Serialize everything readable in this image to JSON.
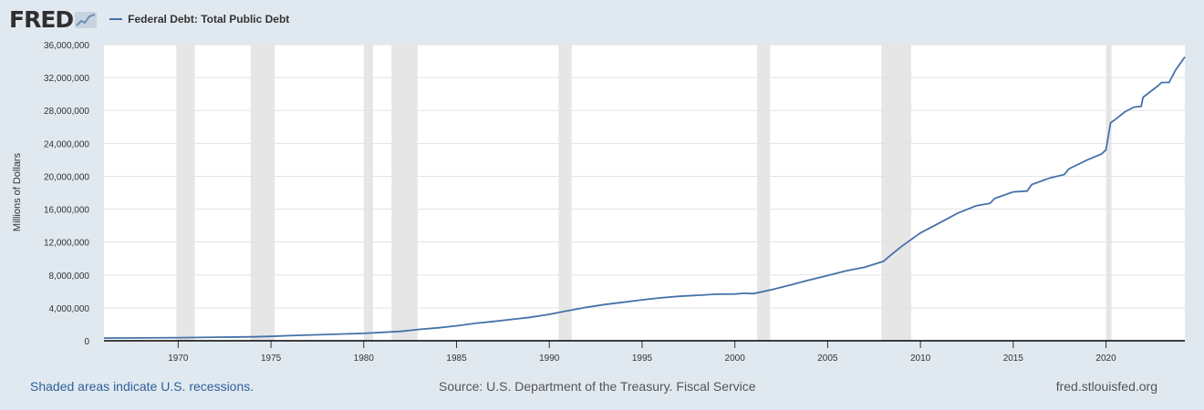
{
  "header": {
    "logo_text": "FRED",
    "series_title": "Federal Debt: Total Public Debt",
    "series_color": "#4572a7"
  },
  "footer": {
    "recession_note": "Shaded areas indicate U.S. recessions.",
    "source": "Source: U.S. Department of the Treasury. Fiscal Service",
    "site": "fred.stlouisfed.org"
  },
  "chart_data": {
    "type": "line",
    "title": "",
    "series_name": "Federal Debt: Total Public Debt",
    "xlabel": "",
    "ylabel": "Millions of Dollars",
    "xlim": [
      1966.0,
      2024.25
    ],
    "ylim": [
      0,
      36000000
    ],
    "x_ticks": [
      1970,
      1975,
      1980,
      1985,
      1990,
      1995,
      2000,
      2005,
      2010,
      2015,
      2020
    ],
    "y_ticks": [
      0,
      4000000,
      8000000,
      12000000,
      16000000,
      20000000,
      24000000,
      28000000,
      32000000,
      36000000
    ],
    "y_tick_labels": [
      "0",
      "4,000,000",
      "8,000,000",
      "12,000,000",
      "16,000,000",
      "20,000,000",
      "24,000,000",
      "28,000,000",
      "32,000,000",
      "36,000,000"
    ],
    "grid": true,
    "line_color": "#4572a7",
    "recession_color": "#e6e6e6",
    "recessions": [
      [
        1969.9,
        1970.9
      ],
      [
        1973.9,
        1975.2
      ],
      [
        1980.0,
        1980.5
      ],
      [
        1981.5,
        1982.9
      ],
      [
        1990.5,
        1991.2
      ],
      [
        2001.2,
        2001.9
      ],
      [
        2007.9,
        2009.5
      ],
      [
        2020.0,
        2020.3
      ]
    ],
    "x": [
      1966.0,
      1968.0,
      1970.0,
      1972.0,
      1974.0,
      1975.0,
      1976.0,
      1978.0,
      1980.0,
      1982.0,
      1983.0,
      1984.0,
      1985.0,
      1986.0,
      1987.0,
      1988.0,
      1989.0,
      1990.0,
      1991.0,
      1992.0,
      1993.0,
      1994.0,
      1995.0,
      1996.0,
      1997.0,
      1998.0,
      1999.0,
      2000.0,
      2000.5,
      2001.0,
      2002.0,
      2003.0,
      2004.0,
      2005.0,
      2006.0,
      2007.0,
      2008.0,
      2008.5,
      2009.0,
      2010.0,
      2011.0,
      2012.0,
      2013.0,
      2013.75,
      2014.0,
      2015.0,
      2015.75,
      2016.0,
      2017.0,
      2017.75,
      2018.0,
      2019.0,
      2019.75,
      2020.0,
      2020.25,
      2020.5,
      2021.0,
      2021.5,
      2021.9,
      2022.0,
      2022.75,
      2023.0,
      2023.4,
      2023.75,
      2024.25
    ],
    "values": [
      320000,
      345000,
      380000,
      430000,
      480000,
      530000,
      620000,
      760000,
      900000,
      1140000,
      1380000,
      1570000,
      1820000,
      2120000,
      2350000,
      2600000,
      2860000,
      3210000,
      3660000,
      4060000,
      4410000,
      4690000,
      4970000,
      5220000,
      5410000,
      5530000,
      5660000,
      5680000,
      5770000,
      5730000,
      6210000,
      6780000,
      7380000,
      7930000,
      8500000,
      8950000,
      9650000,
      10600000,
      11500000,
      13100000,
      14300000,
      15500000,
      16400000,
      16700000,
      17300000,
      18100000,
      18200000,
      19000000,
      19800000,
      20200000,
      20900000,
      22000000,
      22700000,
      23200000,
      26500000,
      26900000,
      27800000,
      28400000,
      28500000,
      29600000,
      30900000,
      31400000,
      31400000,
      32900000,
      34500000
    ]
  }
}
